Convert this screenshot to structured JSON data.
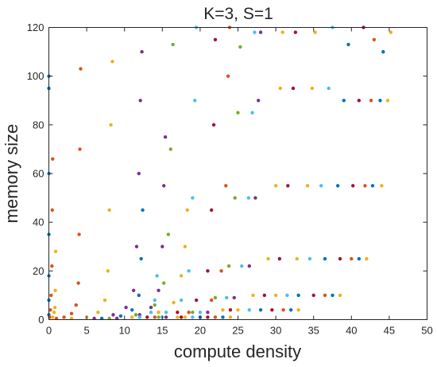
{
  "chart_data": {
    "type": "scatter",
    "title": "K=3, S=1",
    "xlabel": "compute density",
    "ylabel": "memory size",
    "xlim": [
      0,
      50
    ],
    "ylim": [
      0,
      120
    ],
    "xticks": [
      0,
      5,
      10,
      15,
      20,
      25,
      30,
      35,
      40,
      45,
      50
    ],
    "yticks": [
      0,
      20,
      40,
      60,
      80,
      100,
      120
    ],
    "grid": false,
    "legend": "none",
    "palette": [
      "#0072BD",
      "#D95319",
      "#EDB120",
      "#7E2F8E",
      "#77AC30",
      "#4DBEEE",
      "#A2142F"
    ],
    "series": [
      {
        "color": "#0072BD",
        "points": [
          [
            0.0,
            2
          ],
          [
            0.0,
            8
          ],
          [
            0.0,
            18
          ],
          [
            0.0,
            35
          ],
          [
            0.0,
            60
          ],
          [
            0.0,
            95
          ],
          [
            0.0,
            100
          ]
        ]
      },
      {
        "color": "#D95319",
        "points": [
          [
            0.1,
            1
          ],
          [
            0.2,
            4
          ],
          [
            0.3,
            10
          ],
          [
            0.4,
            22
          ],
          [
            0.45,
            45
          ],
          [
            0.5,
            66
          ]
        ]
      },
      {
        "color": "#EDB120",
        "points": [
          [
            0.5,
            1
          ],
          [
            0.7,
            3
          ],
          [
            0.8,
            5
          ],
          [
            0.85,
            12
          ],
          [
            0.9,
            28
          ]
        ]
      },
      {
        "color": "#D95319",
        "points": [
          [
            1.0,
            0.5
          ],
          [
            2.0,
            1
          ],
          [
            3.0,
            2.5
          ],
          [
            3.6,
            6
          ],
          [
            3.9,
            15
          ],
          [
            4.0,
            35
          ],
          [
            4.1,
            70
          ],
          [
            4.2,
            103
          ]
        ]
      },
      {
        "color": "#EDB120",
        "points": [
          [
            3.0,
            0.5
          ],
          [
            5.0,
            1
          ],
          [
            6.5,
            3
          ],
          [
            7.4,
            8
          ],
          [
            7.8,
            20
          ],
          [
            8.0,
            45
          ],
          [
            8.2,
            80
          ],
          [
            8.4,
            106
          ]
        ]
      },
      {
        "color": "#7E2F8E",
        "points": [
          [
            6.0,
            0.5
          ],
          [
            8.5,
            2
          ],
          [
            10.2,
            5
          ],
          [
            11.2,
            12
          ],
          [
            11.6,
            30
          ],
          [
            11.9,
            60
          ],
          [
            12.1,
            90
          ],
          [
            12.3,
            110
          ]
        ]
      },
      {
        "color": "#0072BD",
        "points": [
          [
            7.0,
            0.5
          ],
          [
            9.5,
            1.5
          ],
          [
            11.0,
            4
          ],
          [
            11.9,
            10
          ],
          [
            12.2,
            25
          ],
          [
            12.4,
            45
          ]
        ]
      },
      {
        "color": "#7E2F8E",
        "points": [
          [
            9.0,
            0.5
          ],
          [
            12.0,
            2
          ],
          [
            13.5,
            5
          ],
          [
            14.5,
            12
          ],
          [
            15.0,
            30
          ],
          [
            15.2,
            55
          ],
          [
            15.4,
            75
          ]
        ]
      },
      {
        "color": "#77AC30",
        "points": [
          [
            8.0,
            0.5
          ],
          [
            11.5,
            2
          ],
          [
            14.0,
            6
          ],
          [
            15.2,
            15
          ],
          [
            15.8,
            35
          ],
          [
            16.1,
            70
          ],
          [
            16.4,
            113
          ]
        ]
      },
      {
        "color": "#4DBEEE",
        "points": [
          [
            12.0,
            1
          ],
          [
            15.5,
            3
          ],
          [
            17.5,
            8
          ],
          [
            18.5,
            20
          ],
          [
            19.0,
            50
          ],
          [
            19.3,
            90
          ],
          [
            19.5,
            120
          ]
        ]
      },
      {
        "color": "#EDB120",
        "points": [
          [
            11.0,
            1
          ],
          [
            14.5,
            3
          ],
          [
            16.5,
            7
          ],
          [
            17.5,
            18
          ],
          [
            18.0,
            30
          ],
          [
            18.3,
            45
          ]
        ]
      },
      {
        "color": "#A2142F",
        "points": [
          [
            13.0,
            1
          ],
          [
            17.0,
            3
          ],
          [
            19.5,
            8
          ],
          [
            21.0,
            20
          ],
          [
            21.5,
            45
          ],
          [
            21.8,
            80
          ],
          [
            22.0,
            115
          ]
        ]
      },
      {
        "color": "#D95319",
        "points": [
          [
            14.0,
            1
          ],
          [
            18.5,
            3
          ],
          [
            21.5,
            8
          ],
          [
            22.8,
            20
          ],
          [
            23.4,
            55
          ],
          [
            23.7,
            100
          ],
          [
            23.9,
            120
          ]
        ]
      },
      {
        "color": "#77AC30",
        "points": [
          [
            14.5,
            1
          ],
          [
            19.0,
            3
          ],
          [
            22.0,
            9
          ],
          [
            23.8,
            22
          ],
          [
            24.6,
            50
          ],
          [
            25.0,
            85
          ],
          [
            25.3,
            112
          ]
        ]
      },
      {
        "color": "#4DBEEE",
        "points": [
          [
            15.0,
            1
          ],
          [
            20.0,
            3
          ],
          [
            23.5,
            9
          ],
          [
            25.5,
            22
          ],
          [
            26.4,
            50
          ],
          [
            26.9,
            85
          ],
          [
            27.2,
            118
          ]
        ]
      },
      {
        "color": "#7E2F8E",
        "points": [
          [
            15.5,
            1
          ],
          [
            21.0,
            3
          ],
          [
            24.5,
            9
          ],
          [
            26.5,
            22
          ],
          [
            27.3,
            50
          ],
          [
            27.7,
            90
          ],
          [
            28.0,
            118
          ]
        ]
      },
      {
        "color": "#EDB120",
        "points": [
          [
            17.0,
            1
          ],
          [
            23.0,
            4
          ],
          [
            27.0,
            10
          ],
          [
            29.0,
            25
          ],
          [
            30.0,
            55
          ],
          [
            30.6,
            95
          ],
          [
            30.9,
            118
          ]
        ]
      },
      {
        "color": "#A2142F",
        "points": [
          [
            17.5,
            1
          ],
          [
            24.0,
            4
          ],
          [
            28.5,
            10
          ],
          [
            30.5,
            25
          ],
          [
            31.6,
            55
          ],
          [
            32.3,
            95
          ],
          [
            32.6,
            118
          ]
        ]
      },
      {
        "color": "#EDB120",
        "points": [
          [
            18.0,
            1
          ],
          [
            25.0,
            4
          ],
          [
            30.0,
            10
          ],
          [
            32.8,
            25
          ],
          [
            34.2,
            55
          ],
          [
            34.8,
            95
          ],
          [
            35.2,
            118
          ]
        ]
      },
      {
        "color": "#4DBEEE",
        "points": [
          [
            19.0,
            1
          ],
          [
            26.5,
            4
          ],
          [
            31.5,
            10
          ],
          [
            34.5,
            25
          ],
          [
            36.0,
            55
          ],
          [
            37.0,
            95
          ],
          [
            37.5,
            120
          ]
        ]
      },
      {
        "color": "#0072BD",
        "points": [
          [
            20.0,
            1
          ],
          [
            28.0,
            4
          ],
          [
            33.0,
            10
          ],
          [
            36.5,
            25
          ],
          [
            38.2,
            55
          ],
          [
            39.0,
            90
          ],
          [
            39.6,
            113
          ]
        ]
      },
      {
        "color": "#A2142F",
        "points": [
          [
            21.0,
            1
          ],
          [
            29.5,
            4
          ],
          [
            35.0,
            10
          ],
          [
            38.5,
            25
          ],
          [
            40.2,
            55
          ],
          [
            41.0,
            90
          ],
          [
            41.6,
            120
          ]
        ]
      },
      {
        "color": "#D95319",
        "points": [
          [
            22.0,
            1
          ],
          [
            31.0,
            4
          ],
          [
            36.5,
            10
          ],
          [
            40.0,
            25
          ],
          [
            41.8,
            55
          ],
          [
            42.6,
            90
          ],
          [
            43.0,
            115
          ]
        ]
      },
      {
        "color": "#0072BD",
        "points": [
          [
            23.0,
            1
          ],
          [
            32.0,
            4
          ],
          [
            37.5,
            10
          ],
          [
            41.0,
            25
          ],
          [
            42.8,
            55
          ],
          [
            43.8,
            90
          ],
          [
            44.2,
            110
          ]
        ]
      },
      {
        "color": "#EDB120",
        "points": [
          [
            24.0,
            1
          ],
          [
            33.0,
            4
          ],
          [
            38.5,
            10
          ],
          [
            42.0,
            25
          ],
          [
            44.0,
            55
          ],
          [
            44.8,
            90
          ],
          [
            45.2,
            118
          ]
        ]
      },
      {
        "color": "#4DBEEE",
        "points": [
          [
            12.0,
            1
          ],
          [
            13.5,
            3
          ],
          [
            14.0,
            8
          ],
          [
            14.3,
            18
          ]
        ]
      }
    ]
  }
}
